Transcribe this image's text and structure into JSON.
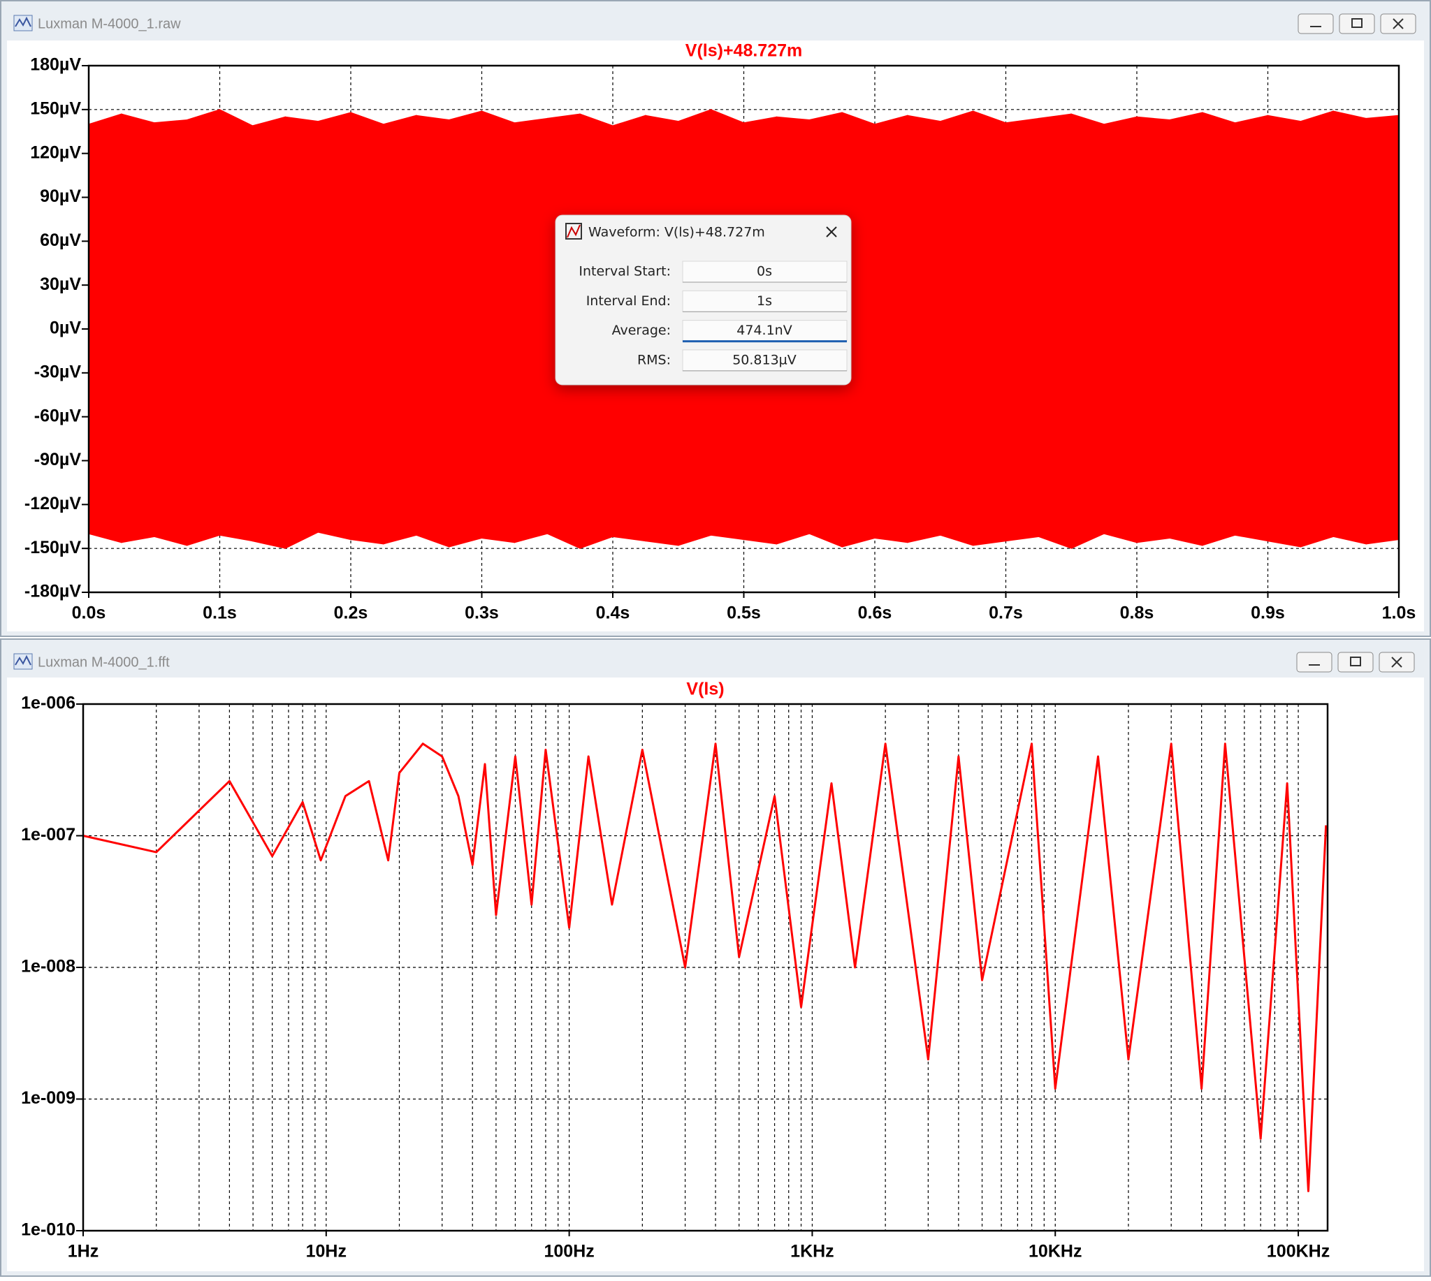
{
  "windows": [
    {
      "title": "Luxman M-4000_1.raw",
      "chart_data": {
        "type": "area",
        "title": "V(ls)+48.727m",
        "color": "#ff0000",
        "x": [
          0,
          0.025,
          0.05,
          0.075,
          0.1,
          0.125,
          0.15,
          0.175,
          0.2,
          0.225,
          0.25,
          0.275,
          0.3,
          0.325,
          0.35,
          0.375,
          0.4,
          0.425,
          0.45,
          0.475,
          0.5,
          0.525,
          0.55,
          0.575,
          0.6,
          0.625,
          0.65,
          0.675,
          0.7,
          0.725,
          0.75,
          0.775,
          0.8,
          0.825,
          0.85,
          0.875,
          0.9,
          0.925,
          0.95,
          0.975,
          1
        ],
        "high": [
          140,
          147,
          141,
          143,
          150,
          139,
          145,
          142,
          148,
          140,
          146,
          143,
          149,
          141,
          144,
          147,
          139,
          146,
          142,
          150,
          141,
          145,
          143,
          148,
          140,
          146,
          142,
          149,
          141,
          144,
          147,
          140,
          145,
          143,
          148,
          141,
          146,
          142,
          149,
          144,
          146
        ],
        "low": [
          -140,
          -146,
          -142,
          -148,
          -141,
          -145,
          -150,
          -139,
          -144,
          -147,
          -141,
          -149,
          -143,
          -146,
          -140,
          -150,
          -142,
          -145,
          -148,
          -141,
          -144,
          -147,
          -140,
          -149,
          -143,
          -146,
          -141,
          -148,
          -145,
          -142,
          -150,
          -140,
          -146,
          -143,
          -148,
          -141,
          -145,
          -149,
          -142,
          -147,
          -144
        ],
        "xlim": [
          0,
          1
        ],
        "xticks": [
          {
            "value": 0,
            "label": "0.0s"
          },
          {
            "value": 0.1,
            "label": "0.1s"
          },
          {
            "value": 0.2,
            "label": "0.2s"
          },
          {
            "value": 0.3,
            "label": "0.3s"
          },
          {
            "value": 0.4,
            "label": "0.4s"
          },
          {
            "value": 0.5,
            "label": "0.5s"
          },
          {
            "value": 0.6,
            "label": "0.6s"
          },
          {
            "value": 0.7,
            "label": "0.7s"
          },
          {
            "value": 0.8,
            "label": "0.8s"
          },
          {
            "value": 0.9,
            "label": "0.9s"
          },
          {
            "value": 1,
            "label": "1.0s"
          }
        ],
        "ylim": [
          -180,
          180
        ],
        "yticks": [
          {
            "value": 180,
            "label": "180µV"
          },
          {
            "value": 150,
            "label": "150µV"
          },
          {
            "value": 120,
            "label": "120µV"
          },
          {
            "value": 90,
            "label": "90µV"
          },
          {
            "value": 60,
            "label": "60µV"
          },
          {
            "value": 30,
            "label": "30µV"
          },
          {
            "value": 0,
            "label": "0µV"
          },
          {
            "value": -30,
            "label": "-30µV"
          },
          {
            "value": -60,
            "label": "-60µV"
          },
          {
            "value": -90,
            "label": "-90µV"
          },
          {
            "value": -120,
            "label": "-120µV"
          },
          {
            "value": -150,
            "label": "-150µV"
          },
          {
            "value": -180,
            "label": "-180µV"
          }
        ],
        "grid": true
      }
    },
    {
      "title": "Luxman M-4000_1.fft",
      "chart_data": {
        "type": "line",
        "title": "V(ls)",
        "color": "#ff0000",
        "x": [
          1,
          2,
          4,
          6,
          8,
          9.5,
          12,
          15,
          18,
          20,
          25,
          30,
          35,
          40,
          45,
          50,
          60,
          70,
          80,
          100,
          120,
          150,
          200,
          300,
          400,
          500,
          700,
          900,
          1200,
          1500,
          2000,
          3000,
          4000,
          5000,
          8000,
          10000,
          15000,
          20000,
          30000,
          40000,
          50000,
          70000,
          90000,
          110000,
          130000
        ],
        "values": [
          1e-07,
          7.5e-08,
          2.6e-07,
          7e-08,
          1.8e-07,
          6.5e-08,
          2e-07,
          2.6e-07,
          6.5e-08,
          3e-07,
          5e-07,
          4e-07,
          2e-07,
          6e-08,
          3.5e-07,
          2.5e-08,
          4e-07,
          3e-08,
          4.5e-07,
          2e-08,
          4e-07,
          3e-08,
          4.5e-07,
          1e-08,
          5e-07,
          1.2e-08,
          2e-07,
          5e-09,
          2.5e-07,
          1e-08,
          5e-07,
          2e-09,
          4e-07,
          8e-09,
          5e-07,
          1.2e-09,
          4e-07,
          2e-09,
          5e-07,
          1.2e-09,
          5e-07,
          5e-10,
          2.5e-07,
          2e-10,
          1.2e-07
        ],
        "xscale": "log",
        "yscale": "log",
        "xlim": [
          1,
          132000
        ],
        "xticks": [
          {
            "value": 1,
            "label": "1Hz"
          },
          {
            "value": 10,
            "label": "10Hz"
          },
          {
            "value": 100,
            "label": "100Hz"
          },
          {
            "value": 1000,
            "label": "1KHz"
          },
          {
            "value": 10000,
            "label": "10KHz"
          },
          {
            "value": 100000,
            "label": "100KHz"
          }
        ],
        "ylim": [
          1e-10,
          1e-06
        ],
        "yticks": [
          {
            "value": 1e-06,
            "label": "1e-006"
          },
          {
            "value": 1e-07,
            "label": "1e-007"
          },
          {
            "value": 1e-08,
            "label": "1e-008"
          },
          {
            "value": 1e-09,
            "label": "1e-009"
          },
          {
            "value": 1e-10,
            "label": "1e-010"
          }
        ],
        "grid": true,
        "minor_grid": true
      }
    }
  ],
  "dialog": {
    "title": "Waveform: V(ls)+48.727m",
    "rows": [
      {
        "label": "Interval Start:",
        "value": "0s"
      },
      {
        "label": "Interval End:",
        "value": "1s"
      },
      {
        "label": "Average:",
        "value": "474.1nV"
      },
      {
        "label": "RMS:",
        "value": "50.813µV"
      }
    ]
  }
}
